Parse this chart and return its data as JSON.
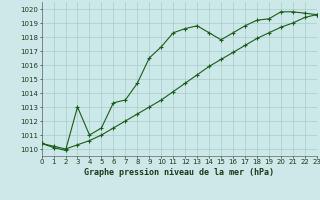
{
  "title": "Graphe pression niveau de la mer (hPa)",
  "background_color": "#cce8e8",
  "grid_color": "#aacccc",
  "line_color": "#1a5c1a",
  "x_min": 0,
  "x_max": 23,
  "y_min": 1009.5,
  "y_max": 1020.5,
  "line1_x": [
    0,
    1,
    2,
    3,
    4,
    5,
    6,
    7,
    8,
    9,
    10,
    11,
    12,
    13,
    14,
    15,
    16,
    17,
    18,
    19,
    20,
    21,
    22,
    23
  ],
  "line1_y": [
    1010.4,
    1010.1,
    1009.9,
    1013.0,
    1011.0,
    1011.5,
    1013.3,
    1013.5,
    1014.7,
    1016.5,
    1017.3,
    1018.3,
    1018.6,
    1018.8,
    1018.3,
    1017.8,
    1018.3,
    1018.8,
    1019.2,
    1019.3,
    1019.8,
    1019.8,
    1019.7,
    1019.6
  ],
  "line2_x": [
    0,
    1,
    2,
    3,
    4,
    5,
    6,
    7,
    8,
    9,
    10,
    11,
    12,
    13,
    14,
    15,
    16,
    17,
    18,
    19,
    20,
    21,
    22,
    23
  ],
  "line2_y": [
    1010.4,
    1010.2,
    1010.0,
    1010.3,
    1010.6,
    1011.0,
    1011.5,
    1012.0,
    1012.5,
    1013.0,
    1013.5,
    1014.1,
    1014.7,
    1015.3,
    1015.9,
    1016.4,
    1016.9,
    1017.4,
    1017.9,
    1018.3,
    1018.7,
    1019.0,
    1019.4,
    1019.6
  ],
  "yticks": [
    1010,
    1011,
    1012,
    1013,
    1014,
    1015,
    1016,
    1017,
    1018,
    1019,
    1020
  ],
  "xticks": [
    0,
    1,
    2,
    3,
    4,
    5,
    6,
    7,
    8,
    9,
    10,
    11,
    12,
    13,
    14,
    15,
    16,
    17,
    18,
    19,
    20,
    21,
    22,
    23
  ],
  "tick_fontsize": 5,
  "title_fontsize": 6,
  "marker_size": 3,
  "linewidth": 0.8
}
